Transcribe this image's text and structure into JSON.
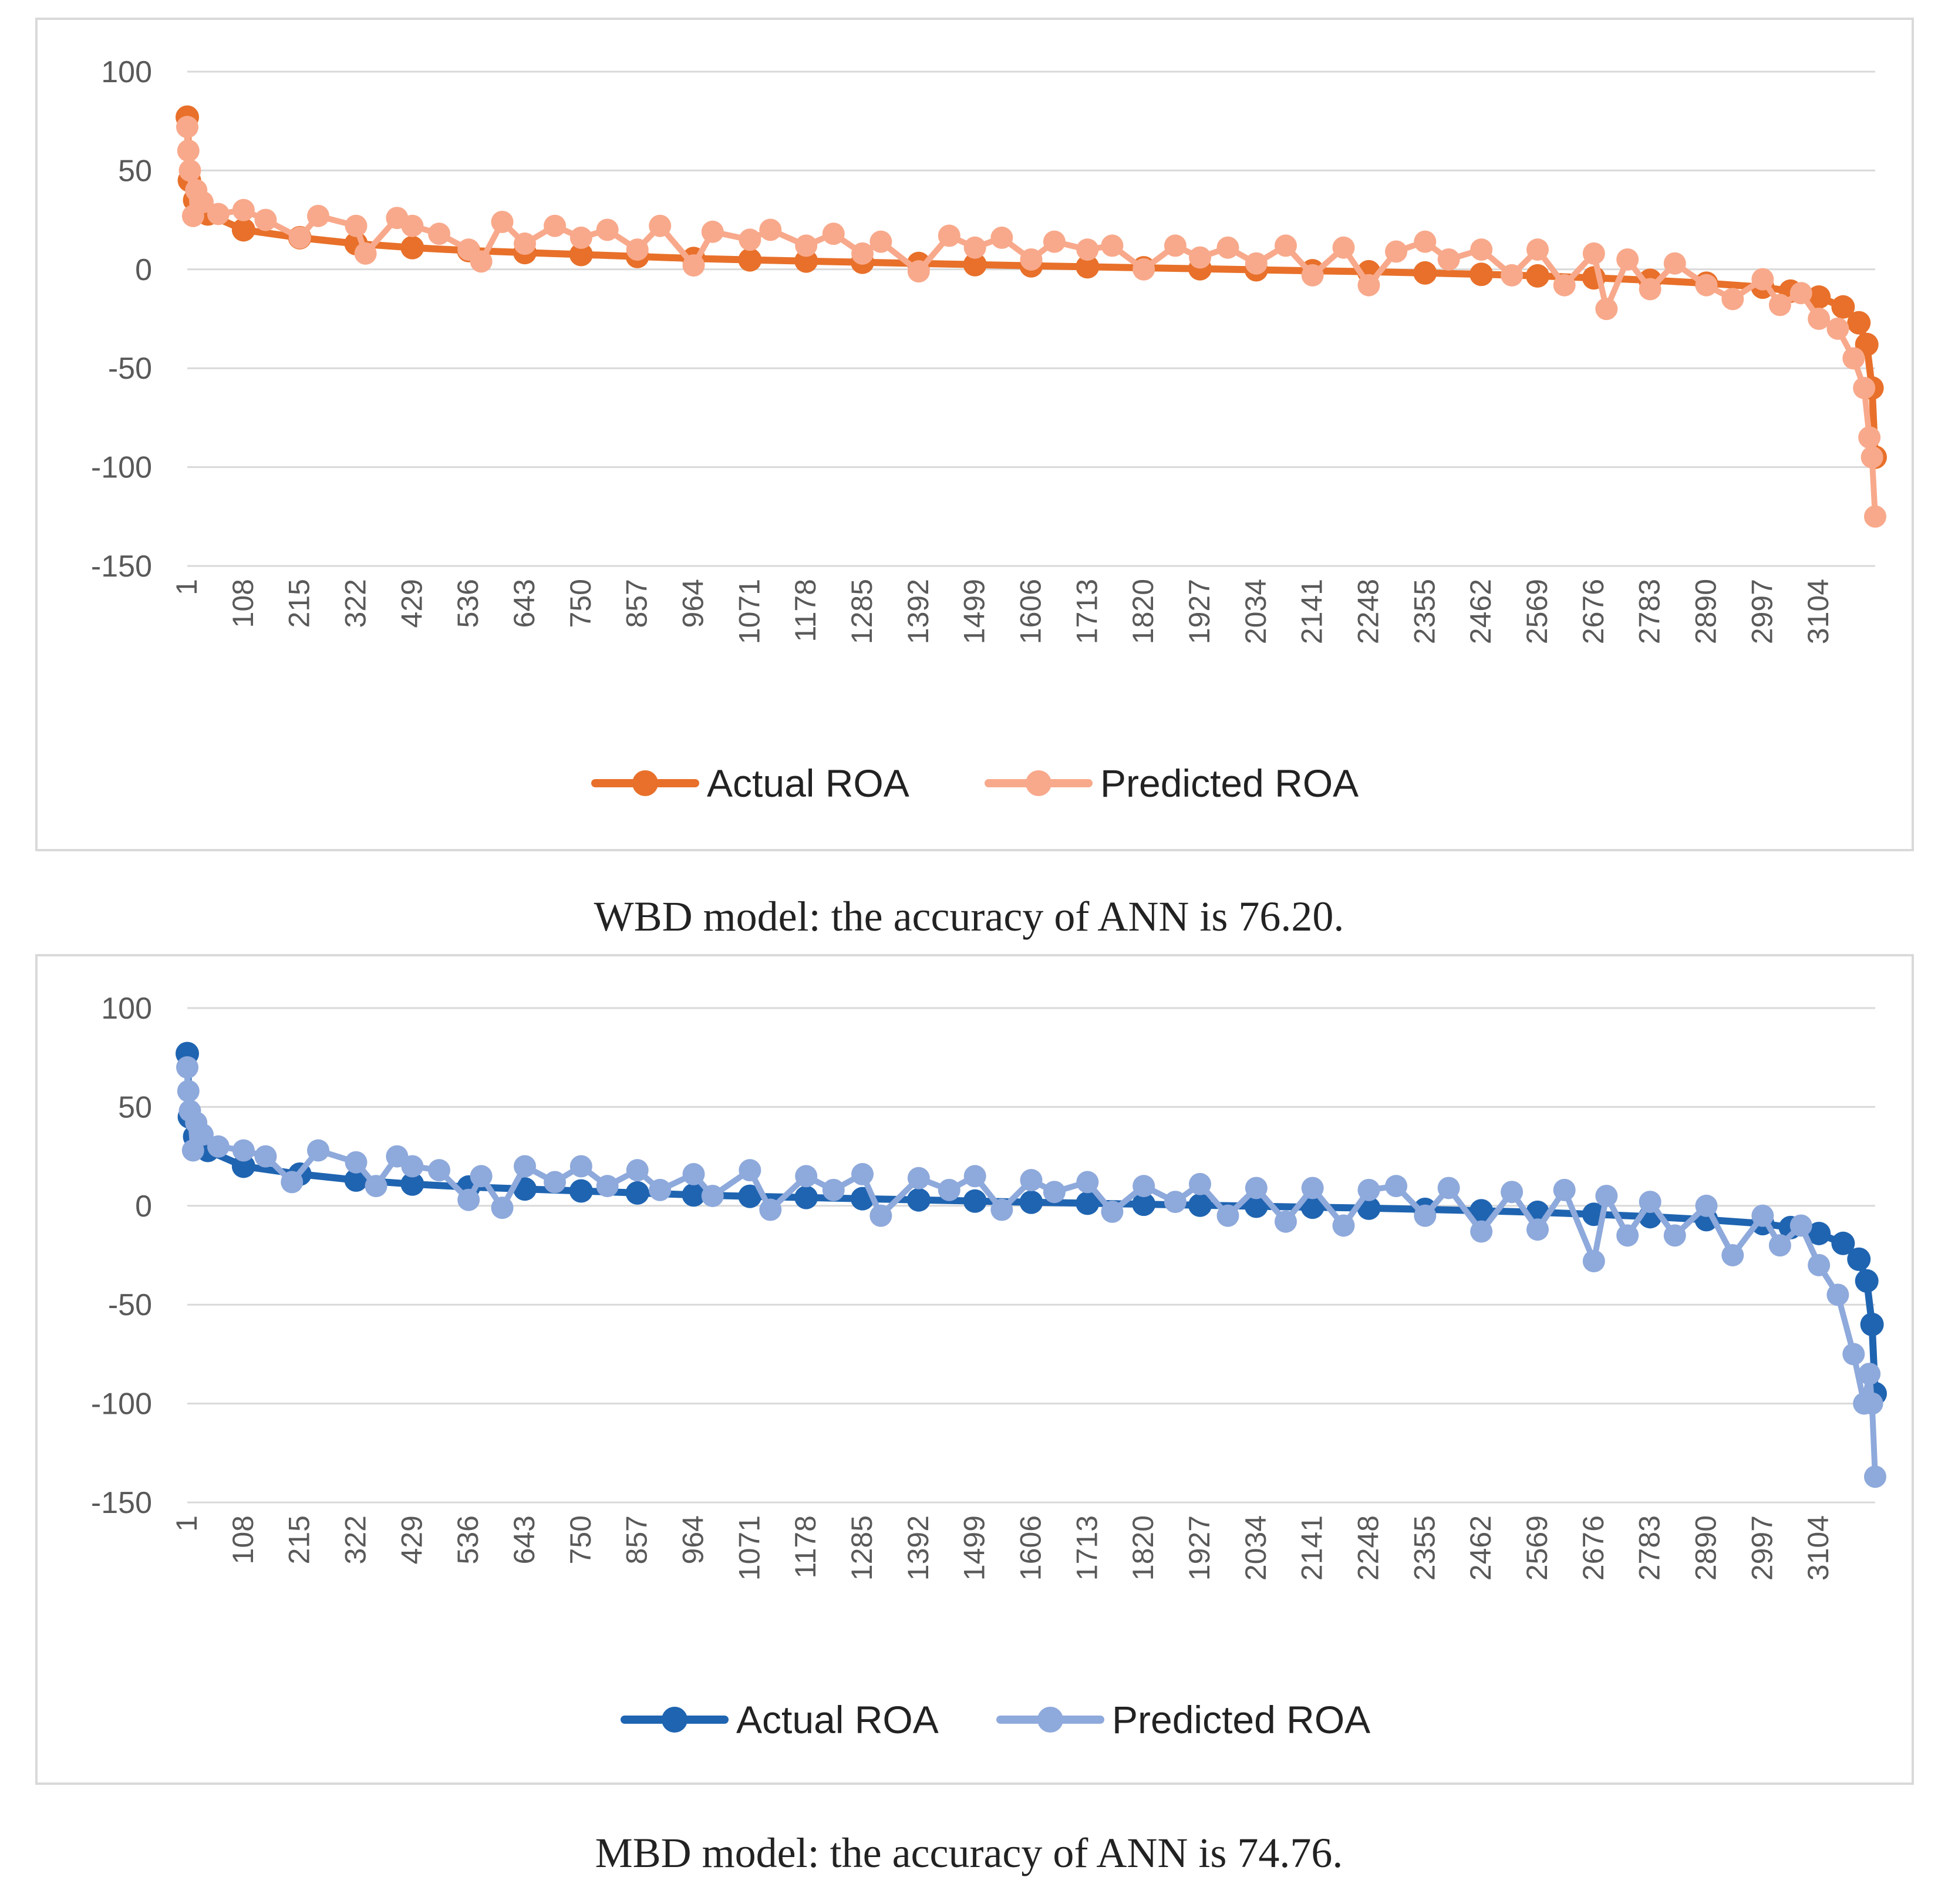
{
  "chart_data": [
    {
      "type": "line",
      "caption": "WBD model: the accuracy of ANN is 76.20.",
      "ylim": [
        -150,
        100
      ],
      "yticks": [
        "100",
        "50",
        "0",
        "-50",
        "-100",
        "-150"
      ],
      "xlim": [
        1,
        3211
      ],
      "xticks": [
        "1",
        "108",
        "215",
        "322",
        "429",
        "536",
        "643",
        "750",
        "857",
        "964",
        "1071",
        "1178",
        "1285",
        "1392",
        "1499",
        "1606",
        "1713",
        "1820",
        "1927",
        "2034",
        "2141",
        "2248",
        "2355",
        "2462",
        "2569",
        "2676",
        "2783",
        "2890",
        "2997",
        "3104"
      ],
      "grid": true,
      "legend_position": "bottom",
      "series": [
        {
          "name": "Actual ROA",
          "color": "#e8702a",
          "x": [
            1,
            5,
            15,
            40,
            108,
            215,
            322,
            429,
            536,
            643,
            750,
            857,
            964,
            1071,
            1178,
            1285,
            1392,
            1499,
            1606,
            1713,
            1820,
            1927,
            2034,
            2141,
            2248,
            2355,
            2462,
            2569,
            2676,
            2783,
            2890,
            2997,
            3050,
            3104,
            3150,
            3180,
            3195,
            3205,
            3211
          ],
          "values": [
            77,
            45,
            35,
            28,
            20,
            16,
            13,
            11,
            9.5,
            8.5,
            7.5,
            6.5,
            5.5,
            4.8,
            4.2,
            3.6,
            3.0,
            2.4,
            1.8,
            1.3,
            0.8,
            0.3,
            -0.2,
            -0.7,
            -1.2,
            -1.8,
            -2.5,
            -3.3,
            -4.3,
            -5.5,
            -7.0,
            -9.0,
            -11,
            -14,
            -19,
            -27,
            -38,
            -60,
            -95
          ]
        },
        {
          "name": "Predicted ROA",
          "color": "#f8a98b",
          "x": [
            1,
            3,
            6,
            12,
            18,
            30,
            60,
            108,
            150,
            215,
            250,
            322,
            340,
            400,
            429,
            480,
            536,
            560,
            600,
            643,
            700,
            750,
            800,
            857,
            900,
            964,
            1000,
            1071,
            1110,
            1178,
            1230,
            1285,
            1320,
            1392,
            1450,
            1499,
            1550,
            1606,
            1650,
            1713,
            1760,
            1820,
            1880,
            1927,
            1980,
            2034,
            2090,
            2141,
            2200,
            2248,
            2300,
            2355,
            2400,
            2462,
            2520,
            2569,
            2620,
            2676,
            2700,
            2740,
            2783,
            2830,
            2890,
            2940,
            2997,
            3030,
            3070,
            3104,
            3140,
            3170,
            3190,
            3200,
            3205,
            3211
          ],
          "values": [
            72,
            60,
            50,
            27,
            40,
            34,
            28,
            30,
            25,
            16,
            27,
            22,
            8,
            26,
            22,
            18,
            10,
            4,
            24,
            13,
            22,
            16,
            20,
            10,
            22,
            2,
            19,
            15,
            20,
            12,
            18,
            8,
            14,
            -1,
            17,
            11,
            16,
            5,
            14,
            10,
            12,
            0,
            12,
            6,
            11,
            3,
            12,
            -3,
            11,
            -8,
            9,
            14,
            5,
            10,
            -3,
            10,
            -8,
            8,
            -20,
            5,
            -10,
            3,
            -8,
            -15,
            -5,
            -18,
            -12,
            -25,
            -30,
            -45,
            -60,
            -85,
            -95,
            -125
          ]
        }
      ]
    },
    {
      "type": "line",
      "caption": "MBD model: the accuracy of ANN is 74.76.",
      "ylim": [
        -150,
        100
      ],
      "yticks": [
        "100",
        "50",
        "0",
        "-50",
        "-100",
        "-150"
      ],
      "xlim": [
        1,
        3211
      ],
      "xticks": [
        "1",
        "108",
        "215",
        "322",
        "429",
        "536",
        "643",
        "750",
        "857",
        "964",
        "1071",
        "1178",
        "1285",
        "1392",
        "1499",
        "1606",
        "1713",
        "1820",
        "1927",
        "2034",
        "2141",
        "2248",
        "2355",
        "2462",
        "2569",
        "2676",
        "2783",
        "2890",
        "2997",
        "3104"
      ],
      "grid": true,
      "legend_position": "bottom",
      "series": [
        {
          "name": "Actual ROA",
          "color": "#1f64b1",
          "x": [
            1,
            5,
            15,
            40,
            108,
            215,
            322,
            429,
            536,
            643,
            750,
            857,
            964,
            1071,
            1178,
            1285,
            1392,
            1499,
            1606,
            1713,
            1820,
            1927,
            2034,
            2141,
            2248,
            2355,
            2462,
            2569,
            2676,
            2783,
            2890,
            2997,
            3050,
            3104,
            3150,
            3180,
            3195,
            3205,
            3211
          ],
          "values": [
            77,
            45,
            35,
            28,
            20,
            16,
            13,
            11,
            9.5,
            8.5,
            7.5,
            6.5,
            5.5,
            4.8,
            4.2,
            3.6,
            3.0,
            2.4,
            1.8,
            1.3,
            0.8,
            0.3,
            -0.2,
            -0.7,
            -1.2,
            -1.8,
            -2.5,
            -3.3,
            -4.3,
            -5.5,
            -7.0,
            -9.0,
            -11,
            -14,
            -19,
            -27,
            -38,
            -60,
            -95
          ]
        },
        {
          "name": "Predicted ROA",
          "color": "#8ea9db",
          "x": [
            1,
            3,
            6,
            12,
            18,
            30,
            60,
            108,
            150,
            200,
            250,
            322,
            360,
            400,
            429,
            480,
            536,
            560,
            600,
            643,
            700,
            750,
            800,
            857,
            900,
            964,
            1000,
            1071,
            1110,
            1178,
            1230,
            1285,
            1320,
            1392,
            1450,
            1499,
            1550,
            1606,
            1650,
            1713,
            1760,
            1820,
            1880,
            1927,
            1980,
            2034,
            2090,
            2141,
            2200,
            2248,
            2300,
            2355,
            2400,
            2462,
            2520,
            2569,
            2620,
            2676,
            2700,
            2740,
            2783,
            2830,
            2890,
            2940,
            2997,
            3030,
            3070,
            3104,
            3140,
            3170,
            3190,
            3200,
            3205,
            3211
          ],
          "values": [
            70,
            58,
            48,
            28,
            42,
            36,
            30,
            28,
            25,
            12,
            28,
            22,
            10,
            25,
            20,
            18,
            3,
            15,
            -1,
            20,
            12,
            20,
            10,
            18,
            8,
            16,
            5,
            18,
            -2,
            15,
            8,
            16,
            -5,
            14,
            8,
            15,
            -2,
            13,
            7,
            12,
            -3,
            10,
            2,
            11,
            -5,
            9,
            -8,
            9,
            -10,
            8,
            10,
            -5,
            9,
            -13,
            7,
            -12,
            8,
            -28,
            5,
            -15,
            2,
            -15,
            0,
            -25,
            -5,
            -20,
            -10,
            -30,
            -45,
            -75,
            -100,
            -85,
            -100,
            -137
          ]
        }
      ]
    }
  ]
}
